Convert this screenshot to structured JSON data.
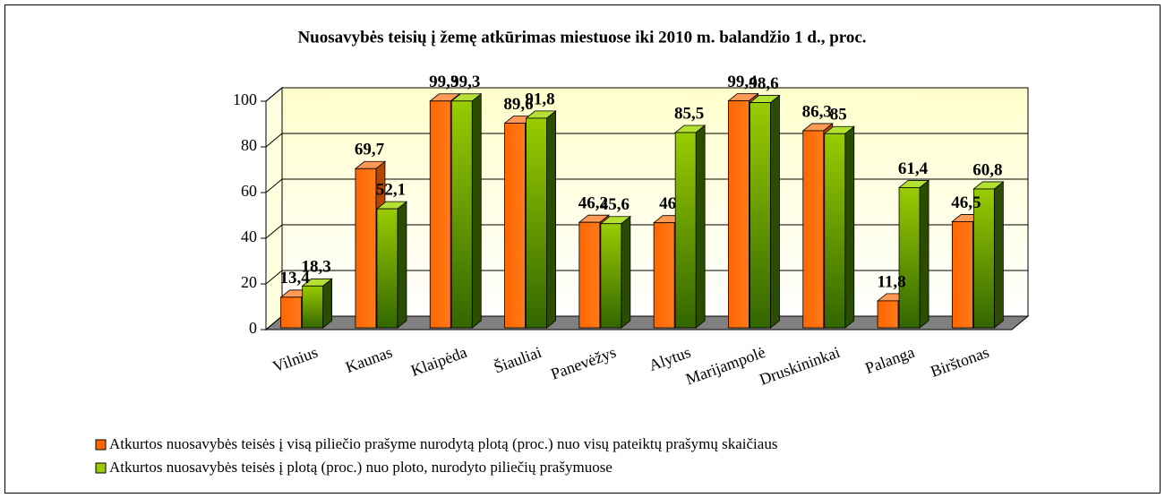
{
  "chart_data": {
    "type": "bar3d",
    "title": "Nuosavybės teisių į žemę atkūrimas miestuose iki 2010 m. balandžio 1 d., proc.",
    "categories": [
      "Vilnius",
      "Kaunas",
      "Klaipėda",
      "Šiauliai",
      "Panevėžys",
      "Alytus",
      "Marijampolė",
      "Druskininkai",
      "Palanga",
      "Birštonas"
    ],
    "series": [
      {
        "name": "Atkurtos nuosavybės teisės į visą piliečio prašyme nurodytą plotą (proc.) nuo visų pateiktų prašymų skaičiaus",
        "color": "#ff6600",
        "values": [
          13.4,
          69.7,
          99.3,
          89.6,
          46.2,
          46,
          99.4,
          86.3,
          11.8,
          46.5
        ],
        "value_labels": [
          "13,4",
          "69,7",
          "99,3",
          "89,6",
          "46,2",
          "46",
          "99,4",
          "86,3",
          "11,8",
          "46,5"
        ]
      },
      {
        "name": "Atkurtos nuosavybės teisės į plotą (proc.) nuo ploto, nurodyto piliečių prašymuose",
        "color": "#99cc00",
        "values": [
          18.3,
          52.1,
          99.3,
          91.8,
          45.6,
          85.5,
          98.6,
          85,
          61.4,
          60.8
        ],
        "value_labels": [
          "18,3",
          "52,1",
          "99,3",
          "91,8",
          "45,6",
          "85,5",
          "98,6",
          "85",
          "61,4",
          "60,8"
        ]
      }
    ],
    "ylim": [
      0,
      100
    ],
    "yticks": [
      0,
      20,
      40,
      60,
      80,
      100
    ],
    "grid": true,
    "legend": "bottom"
  }
}
